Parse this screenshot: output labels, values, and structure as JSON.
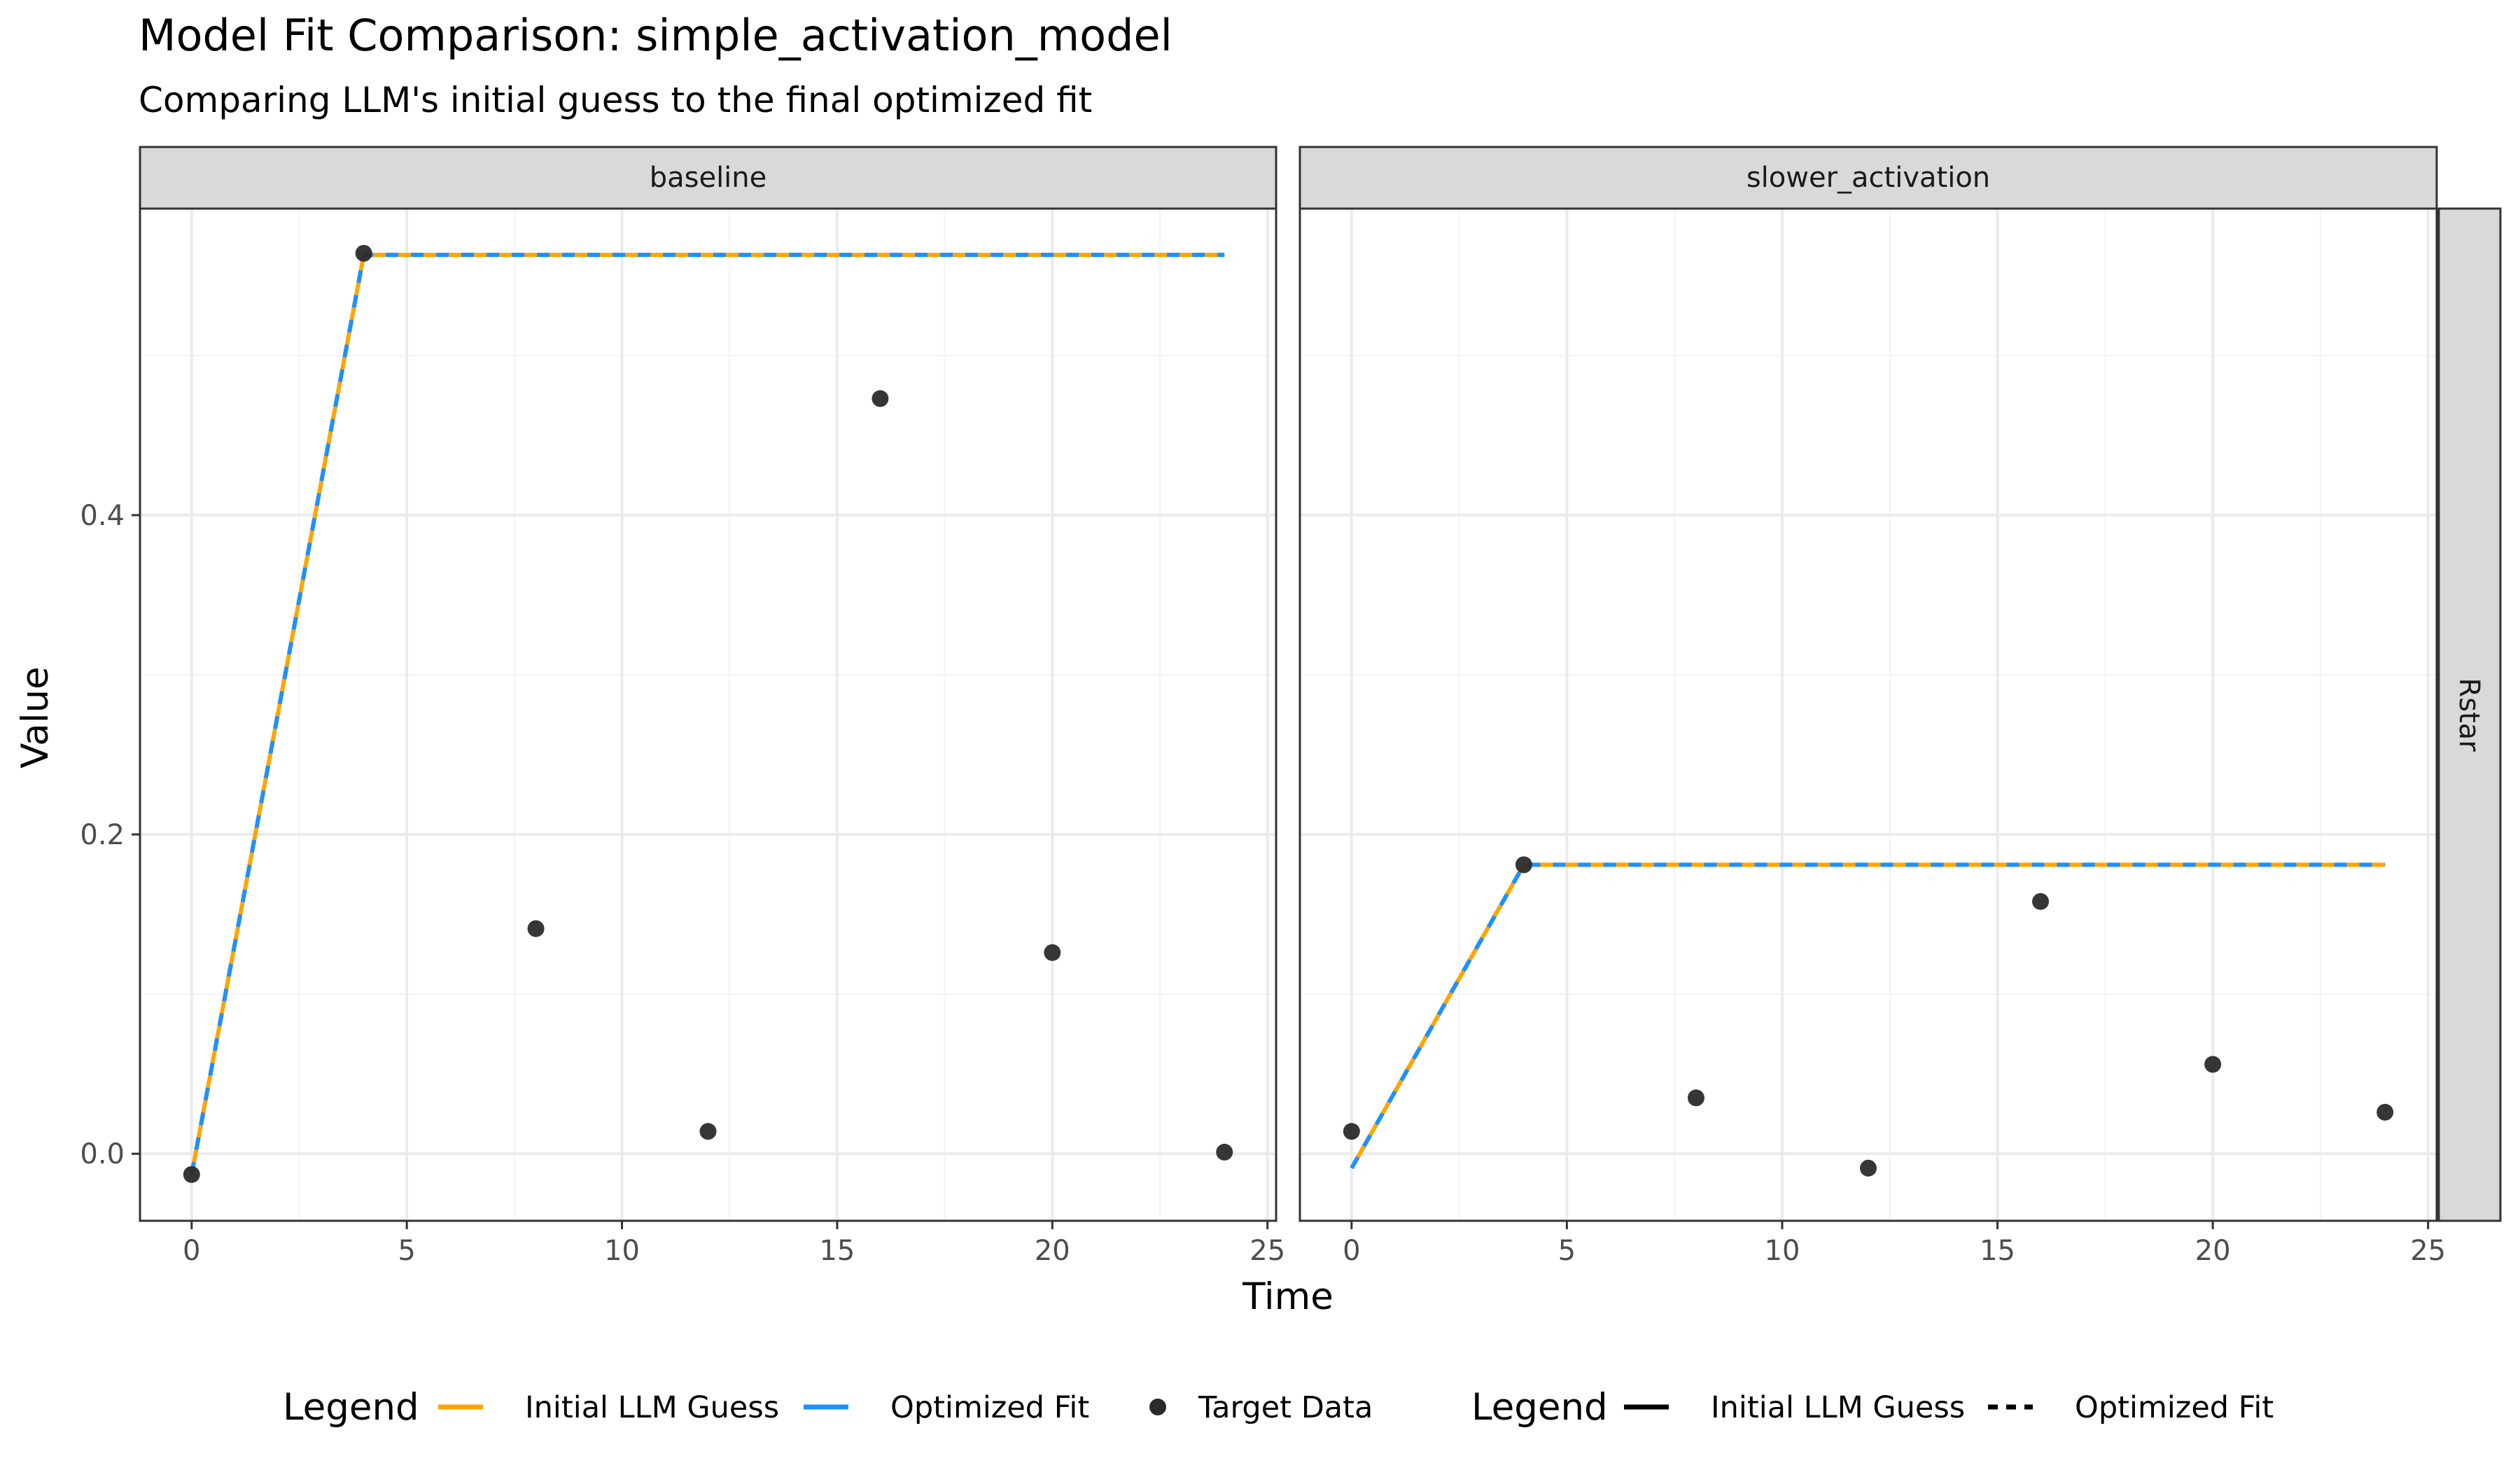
{
  "chart_data": {
    "type": "line",
    "title": "Model Fit Comparison: simple_activation_model",
    "subtitle": "Comparing LLM's initial guess to the final optimized fit",
    "xlabel": "Time",
    "ylabel": "Value",
    "xlim": [
      -1.2,
      25.2
    ],
    "ylim": [
      -0.042,
      0.592
    ],
    "x_ticks": [
      0,
      5,
      10,
      15,
      20,
      25
    ],
    "y_ticks": [
      0.0,
      0.2,
      0.4
    ],
    "y_tick_labels": [
      "0.0",
      "0.2",
      "0.4"
    ],
    "grid": true,
    "row_strip": "Rstar",
    "colors": {
      "initial": "#FFA500",
      "optimized": "#1E90FF",
      "points": "#2b2b2b",
      "strip_bg": "#d9d9d9",
      "grid": "#ebebeb"
    },
    "panels": [
      {
        "name": "baseline",
        "lines": {
          "x": [
            0,
            4,
            8,
            12,
            16,
            20,
            24
          ],
          "initial": [
            -0.013,
            0.563,
            0.563,
            0.563,
            0.563,
            0.563,
            0.563
          ],
          "optimized": [
            -0.013,
            0.563,
            0.563,
            0.563,
            0.563,
            0.563,
            0.563
          ]
        },
        "points": {
          "x": [
            0,
            4,
            8,
            12,
            16,
            20,
            24
          ],
          "y": [
            -0.013,
            0.564,
            0.141,
            0.014,
            0.473,
            0.126,
            0.001
          ]
        }
      },
      {
        "name": "slower_activation",
        "lines": {
          "x": [
            0,
            4,
            8,
            12,
            16,
            20,
            24
          ],
          "initial": [
            -0.009,
            0.181,
            0.181,
            0.181,
            0.181,
            0.181,
            0.181
          ],
          "optimized": [
            -0.009,
            0.181,
            0.181,
            0.181,
            0.181,
            0.181,
            0.181
          ]
        },
        "points": {
          "x": [
            0,
            4,
            8,
            12,
            16,
            20,
            24
          ],
          "y": [
            0.014,
            0.181,
            0.035,
            -0.009,
            0.158,
            0.056,
            0.026
          ]
        }
      }
    ],
    "legend": {
      "position": "bottom",
      "groups": [
        {
          "title": "Legend",
          "items": [
            {
              "label": "Initial LLM Guess",
              "kind": "line",
              "color": "#FFA500"
            },
            {
              "label": "Optimized Fit",
              "kind": "line",
              "color": "#1E90FF"
            },
            {
              "label": "Target Data",
              "kind": "point",
              "color": "#2b2b2b"
            }
          ]
        },
        {
          "title": "Legend",
          "items": [
            {
              "label": "Initial LLM Guess",
              "kind": "solid",
              "color": "#000000"
            },
            {
              "label": "Optimized Fit",
              "kind": "dashed",
              "color": "#000000"
            }
          ]
        }
      ]
    }
  }
}
